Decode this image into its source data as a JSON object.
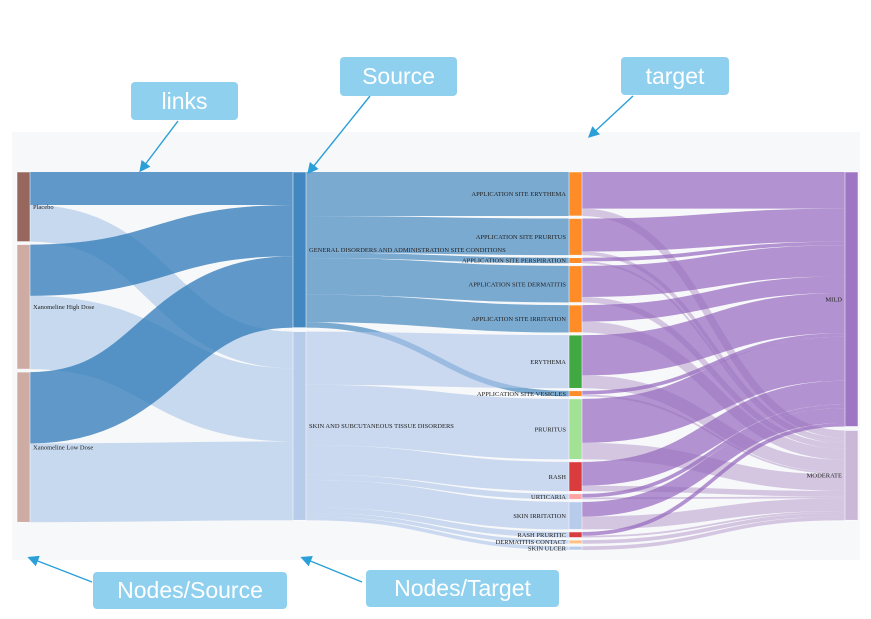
{
  "callouts": {
    "links": "links",
    "source": "Source",
    "target": "target",
    "nodes_source": "Nodes/Source",
    "nodes_target": "Nodes/Target"
  },
  "colors": {
    "placebo": "#8c564b",
    "treatment": "#c9a39a",
    "general_disorders": "#2e7ab8",
    "skin_disorders": "#aec7e8",
    "orange": "#ff7f0e",
    "green": "#2ca02c",
    "light_green": "#98df8a",
    "red": "#d62728",
    "pink": "#ff9896",
    "mild": "#9467bd",
    "moderate": "#c5b0d5",
    "callout": "#8fd0ef"
  },
  "chart_data": {
    "type": "sankey",
    "nodes": [
      {
        "id": "placebo",
        "label": "Placebo",
        "column": 0,
        "color": "#8c564b"
      },
      {
        "id": "high",
        "label": "Xanomeline High Dose",
        "column": 0,
        "color": "#c9a39a"
      },
      {
        "id": "low",
        "label": "Xanomeline Low Dose",
        "column": 0,
        "color": "#c9a39a"
      },
      {
        "id": "gen",
        "label": "GENERAL DISORDERS AND ADMINISTRATION SITE CONDITIONS",
        "column": 1,
        "color": "#2e7ab8"
      },
      {
        "id": "skin",
        "label": "SKIN AND SUBCUTANEOUS TISSUE DISORDERS",
        "column": 1,
        "color": "#aec7e8"
      },
      {
        "id": "ery",
        "label": "APPLICATION SITE ERYTHEMA",
        "column": 2,
        "color": "#ff7f0e"
      },
      {
        "id": "prur",
        "label": "APPLICATION SITE PRURITUS",
        "column": 2,
        "color": "#ff7f0e"
      },
      {
        "id": "persp",
        "label": "APPLICATION SITE PERSPIRATION",
        "column": 2,
        "color": "#ff7f0e"
      },
      {
        "id": "derm",
        "label": "APPLICATION SITE DERMATITIS",
        "column": 2,
        "color": "#ff7f0e"
      },
      {
        "id": "irr",
        "label": "APPLICATION SITE IRRITATION",
        "column": 2,
        "color": "#ff7f0e"
      },
      {
        "id": "erythema",
        "label": "ERYTHEMA",
        "column": 2,
        "color": "#2ca02c"
      },
      {
        "id": "vesic",
        "label": "APPLICATION SITE VESICLES",
        "column": 2,
        "color": "#ff7f0e"
      },
      {
        "id": "pruritus",
        "label": "PRURITUS",
        "column": 2,
        "color": "#98df8a"
      },
      {
        "id": "rash",
        "label": "RASH",
        "column": 2,
        "color": "#d62728"
      },
      {
        "id": "urt",
        "label": "URTICARIA",
        "column": 2,
        "color": "#ff9896"
      },
      {
        "id": "skirr",
        "label": "SKIN IRRITATION",
        "column": 2,
        "color": "#aec7e8"
      },
      {
        "id": "rashp",
        "label": "RASH PRURITIC",
        "column": 2,
        "color": "#d62728"
      },
      {
        "id": "dermc",
        "label": "DERMATITIS CONTACT",
        "column": 2,
        "color": "#ffbb78"
      },
      {
        "id": "ulcer",
        "label": "SKIN ULCER",
        "column": 2,
        "color": "#aec7e8"
      },
      {
        "id": "mild",
        "label": "MILD",
        "column": 3,
        "color": "#9467bd"
      },
      {
        "id": "mod",
        "label": "MODERATE",
        "column": 3,
        "color": "#c5b0d5"
      }
    ],
    "links": [
      {
        "source": "placebo",
        "target": "gen",
        "value": 18
      },
      {
        "source": "placebo",
        "target": "skin",
        "value": 20
      },
      {
        "source": "high",
        "target": "gen",
        "value": 28
      },
      {
        "source": "high",
        "target": "skin",
        "value": 40
      },
      {
        "source": "low",
        "target": "gen",
        "value": 39
      },
      {
        "source": "low",
        "target": "skin",
        "value": 43
      },
      {
        "source": "gen",
        "target": "ery",
        "value": 24
      },
      {
        "source": "gen",
        "target": "prur",
        "value": 20
      },
      {
        "source": "gen",
        "target": "persp",
        "value": 3
      },
      {
        "source": "gen",
        "target": "derm",
        "value": 20
      },
      {
        "source": "gen",
        "target": "irr",
        "value": 15
      },
      {
        "source": "gen",
        "target": "vesic",
        "value": 3
      },
      {
        "source": "skin",
        "target": "erythema",
        "value": 29
      },
      {
        "source": "skin",
        "target": "pruritus",
        "value": 33
      },
      {
        "source": "skin",
        "target": "rash",
        "value": 16
      },
      {
        "source": "skin",
        "target": "urt",
        "value": 3
      },
      {
        "source": "skin",
        "target": "skirr",
        "value": 15
      },
      {
        "source": "skin",
        "target": "rashp",
        "value": 3
      },
      {
        "source": "skin",
        "target": "dermc",
        "value": 2
      },
      {
        "source": "skin",
        "target": "ulcer",
        "value": 2
      },
      {
        "source": "ery",
        "target": "mild",
        "value": 20
      },
      {
        "source": "ery",
        "target": "mod",
        "value": 4
      },
      {
        "source": "prur",
        "target": "mild",
        "value": 18
      },
      {
        "source": "prur",
        "target": "mod",
        "value": 2
      },
      {
        "source": "persp",
        "target": "mild",
        "value": 2
      },
      {
        "source": "persp",
        "target": "mod",
        "value": 1
      },
      {
        "source": "derm",
        "target": "mild",
        "value": 17
      },
      {
        "source": "derm",
        "target": "mod",
        "value": 3
      },
      {
        "source": "irr",
        "target": "mild",
        "value": 9
      },
      {
        "source": "irr",
        "target": "mod",
        "value": 6
      },
      {
        "source": "erythema",
        "target": "mild",
        "value": 22
      },
      {
        "source": "erythema",
        "target": "mod",
        "value": 7
      },
      {
        "source": "vesic",
        "target": "mild",
        "value": 2
      },
      {
        "source": "vesic",
        "target": "mod",
        "value": 1
      },
      {
        "source": "pruritus",
        "target": "mild",
        "value": 24
      },
      {
        "source": "pruritus",
        "target": "mod",
        "value": 9
      },
      {
        "source": "rash",
        "target": "mild",
        "value": 13
      },
      {
        "source": "rash",
        "target": "mod",
        "value": 3
      },
      {
        "source": "urt",
        "target": "mild",
        "value": 2
      },
      {
        "source": "urt",
        "target": "mod",
        "value": 1
      },
      {
        "source": "skirr",
        "target": "mild",
        "value": 8
      },
      {
        "source": "skirr",
        "target": "mod",
        "value": 7
      },
      {
        "source": "rashp",
        "target": "mild",
        "value": 2
      },
      {
        "source": "rashp",
        "target": "mod",
        "value": 1
      },
      {
        "source": "dermc",
        "target": "mod",
        "value": 2
      },
      {
        "source": "ulcer",
        "target": "mod",
        "value": 2
      }
    ]
  }
}
